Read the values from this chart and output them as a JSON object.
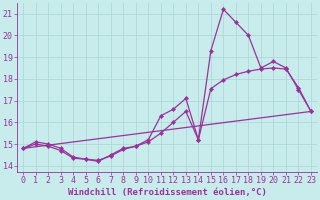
{
  "xlabel": "Windchill (Refroidissement éolien,°C)",
  "bg_color": "#c8ecec",
  "grid_color": "#b0d8d8",
  "line_color": "#993399",
  "xlim": [
    -0.5,
    23.5
  ],
  "ylim": [
    13.7,
    21.5
  ],
  "xticks": [
    0,
    1,
    2,
    3,
    4,
    5,
    6,
    7,
    8,
    9,
    10,
    11,
    12,
    13,
    14,
    15,
    16,
    17,
    18,
    19,
    20,
    21,
    22,
    23
  ],
  "yticks": [
    14,
    15,
    16,
    17,
    18,
    19,
    20,
    21
  ],
  "line1_x": [
    0,
    1,
    2,
    3,
    4,
    5,
    6,
    7,
    8,
    9,
    10,
    11,
    12,
    13,
    14,
    15,
    16,
    17,
    18,
    19,
    20,
    21,
    22,
    23
  ],
  "line1_y": [
    14.8,
    15.1,
    15.0,
    14.8,
    14.4,
    14.3,
    14.2,
    14.5,
    14.8,
    14.9,
    15.2,
    16.3,
    16.6,
    17.1,
    15.2,
    19.3,
    21.2,
    20.6,
    20.0,
    18.5,
    18.8,
    18.5,
    17.5,
    16.5
  ],
  "line2_x": [
    0,
    1,
    2,
    3,
    4,
    5,
    6,
    7,
    8,
    9,
    10,
    11,
    12,
    13,
    14,
    15,
    16,
    17,
    18,
    19,
    20,
    21,
    22,
    23
  ],
  "line2_y": [
    14.8,
    15.0,
    14.9,
    14.7,
    14.35,
    14.3,
    14.25,
    14.45,
    14.75,
    14.9,
    15.1,
    15.5,
    16.0,
    16.5,
    15.2,
    17.55,
    17.95,
    18.2,
    18.35,
    18.45,
    18.5,
    18.45,
    17.6,
    16.5
  ],
  "line3_x": [
    0,
    23
  ],
  "line3_y": [
    14.8,
    16.5
  ],
  "markersize": 2.2,
  "linewidth": 0.9,
  "xlabel_fontsize": 6.5,
  "tick_fontsize": 6.0
}
